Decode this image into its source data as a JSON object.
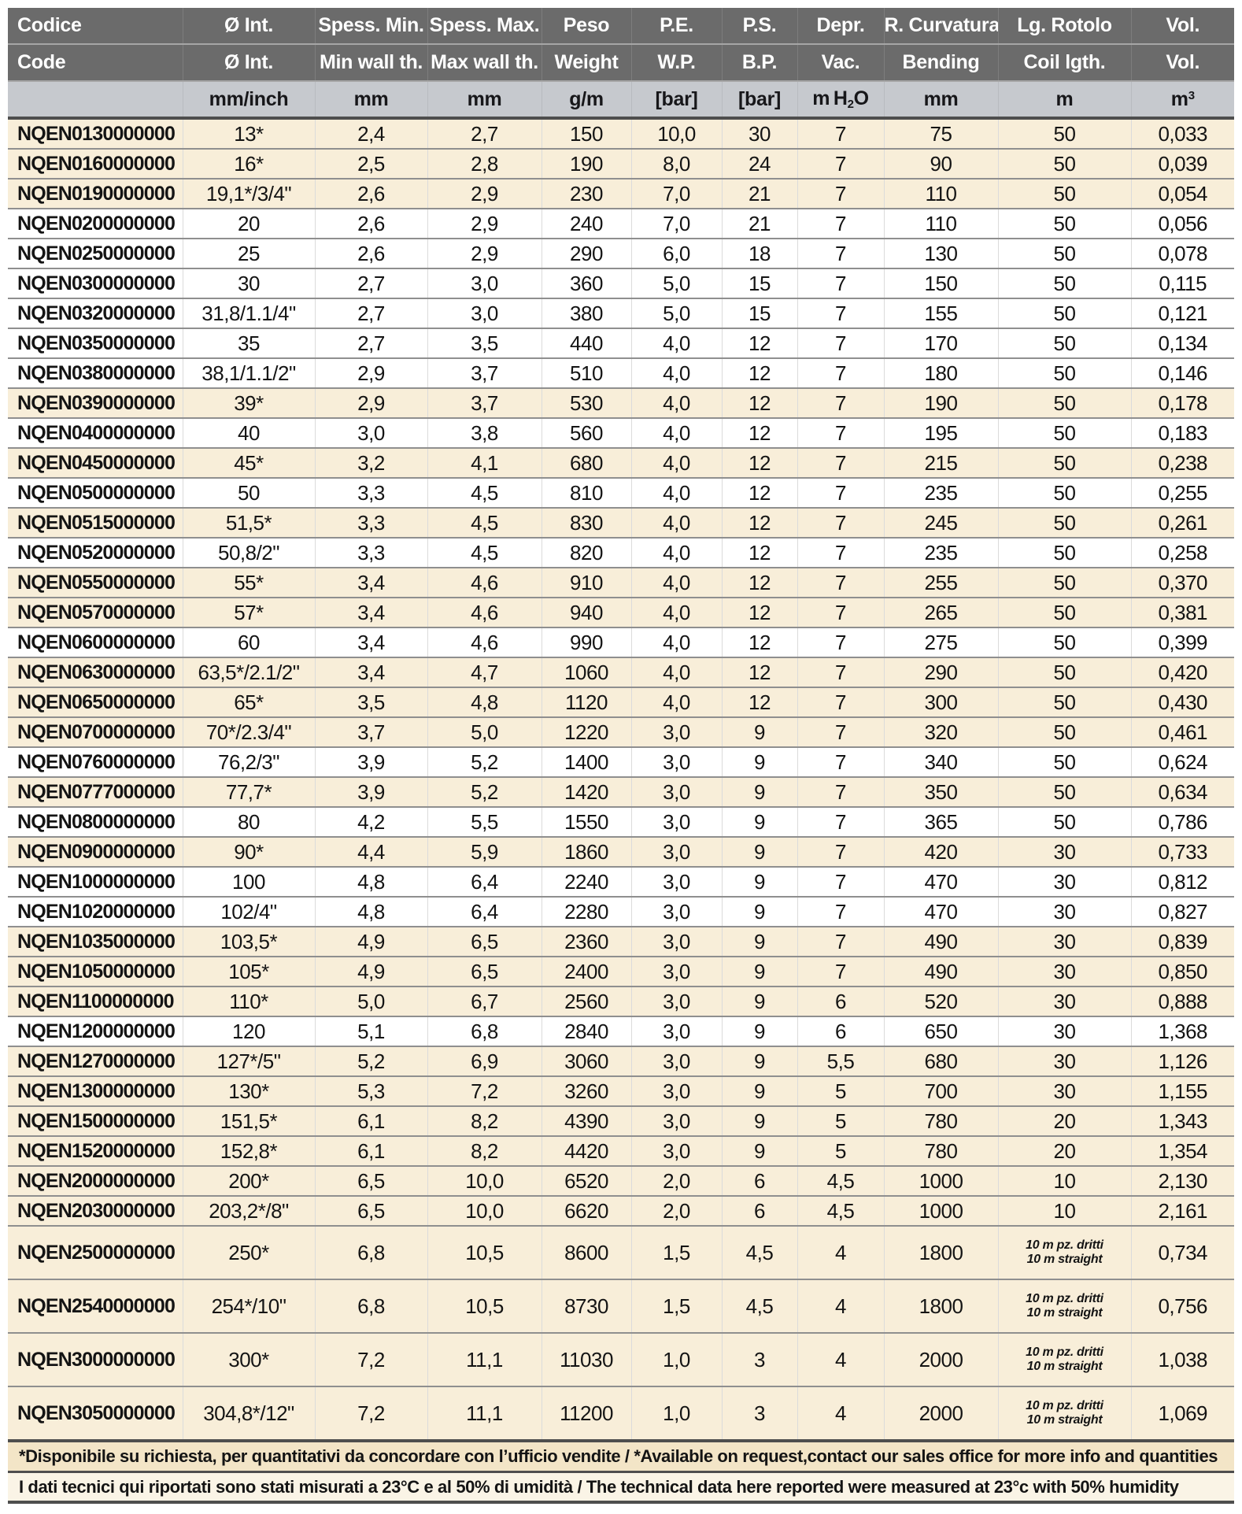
{
  "table": {
    "header": {
      "row1": [
        "Codice",
        "Ø Int.",
        "Spess. Min.",
        "Spess. Max.",
        "Peso",
        "P.E.",
        "P.S.",
        "Depr.",
        "R. Curvatura",
        "Lg. Rotolo",
        "Vol."
      ],
      "row2": [
        "Code",
        "Ø Int.",
        "Min wall th.",
        "Max wall th.",
        "Weight",
        "W.P.",
        "B.P.",
        "Vac.",
        "Bending",
        "Coil lgth.",
        "Vol."
      ],
      "units": [
        "",
        "mm/inch",
        "mm",
        "mm",
        "g/m",
        "[bar]",
        "[bar]",
        "m H2O",
        "mm",
        "m",
        "m3"
      ]
    },
    "rows": [
      [
        "NQEN0130000000",
        "13*",
        "2,4",
        "2,7",
        "150",
        "10,0",
        "30",
        "7",
        "75",
        "50",
        "0,033"
      ],
      [
        "NQEN0160000000",
        "16*",
        "2,5",
        "2,8",
        "190",
        "8,0",
        "24",
        "7",
        "90",
        "50",
        "0,039"
      ],
      [
        "NQEN0190000000",
        "19,1*/3/4\"",
        "2,6",
        "2,9",
        "230",
        "7,0",
        "21",
        "7",
        "110",
        "50",
        "0,054"
      ],
      [
        "NQEN0200000000",
        "20",
        "2,6",
        "2,9",
        "240",
        "7,0",
        "21",
        "7",
        "110",
        "50",
        "0,056"
      ],
      [
        "NQEN0250000000",
        "25",
        "2,6",
        "2,9",
        "290",
        "6,0",
        "18",
        "7",
        "130",
        "50",
        "0,078"
      ],
      [
        "NQEN0300000000",
        "30",
        "2,7",
        "3,0",
        "360",
        "5,0",
        "15",
        "7",
        "150",
        "50",
        "0,115"
      ],
      [
        "NQEN0320000000",
        "31,8/1.1/4\"",
        "2,7",
        "3,0",
        "380",
        "5,0",
        "15",
        "7",
        "155",
        "50",
        "0,121"
      ],
      [
        "NQEN0350000000",
        "35",
        "2,7",
        "3,5",
        "440",
        "4,0",
        "12",
        "7",
        "170",
        "50",
        "0,134"
      ],
      [
        "NQEN0380000000",
        "38,1/1.1/2\"",
        "2,9",
        "3,7",
        "510",
        "4,0",
        "12",
        "7",
        "180",
        "50",
        "0,146"
      ],
      [
        "NQEN0390000000",
        "39*",
        "2,9",
        "3,7",
        "530",
        "4,0",
        "12",
        "7",
        "190",
        "50",
        "0,178"
      ],
      [
        "NQEN0400000000",
        "40",
        "3,0",
        "3,8",
        "560",
        "4,0",
        "12",
        "7",
        "195",
        "50",
        "0,183"
      ],
      [
        "NQEN0450000000",
        "45*",
        "3,2",
        "4,1",
        "680",
        "4,0",
        "12",
        "7",
        "215",
        "50",
        "0,238"
      ],
      [
        "NQEN0500000000",
        "50",
        "3,3",
        "4,5",
        "810",
        "4,0",
        "12",
        "7",
        "235",
        "50",
        "0,255"
      ],
      [
        "NQEN0515000000",
        "51,5*",
        "3,3",
        "4,5",
        "830",
        "4,0",
        "12",
        "7",
        "245",
        "50",
        "0,261"
      ],
      [
        "NQEN0520000000",
        "50,8/2\"",
        "3,3",
        "4,5",
        "820",
        "4,0",
        "12",
        "7",
        "235",
        "50",
        "0,258"
      ],
      [
        "NQEN0550000000",
        "55*",
        "3,4",
        "4,6",
        "910",
        "4,0",
        "12",
        "7",
        "255",
        "50",
        "0,370"
      ],
      [
        "NQEN0570000000",
        "57*",
        "3,4",
        "4,6",
        "940",
        "4,0",
        "12",
        "7",
        "265",
        "50",
        "0,381"
      ],
      [
        "NQEN0600000000",
        "60",
        "3,4",
        "4,6",
        "990",
        "4,0",
        "12",
        "7",
        "275",
        "50",
        "0,399"
      ],
      [
        "NQEN0630000000",
        "63,5*/2.1/2\"",
        "3,4",
        "4,7",
        "1060",
        "4,0",
        "12",
        "7",
        "290",
        "50",
        "0,420"
      ],
      [
        "NQEN0650000000",
        "65*",
        "3,5",
        "4,8",
        "1120",
        "4,0",
        "12",
        "7",
        "300",
        "50",
        "0,430"
      ],
      [
        "NQEN0700000000",
        "70*/2.3/4\"",
        "3,7",
        "5,0",
        "1220",
        "3,0",
        "9",
        "7",
        "320",
        "50",
        "0,461"
      ],
      [
        "NQEN0760000000",
        "76,2/3\"",
        "3,9",
        "5,2",
        "1400",
        "3,0",
        "9",
        "7",
        "340",
        "50",
        "0,624"
      ],
      [
        "NQEN0777000000",
        "77,7*",
        "3,9",
        "5,2",
        "1420",
        "3,0",
        "9",
        "7",
        "350",
        "50",
        "0,634"
      ],
      [
        "NQEN0800000000",
        "80",
        "4,2",
        "5,5",
        "1550",
        "3,0",
        "9",
        "7",
        "365",
        "50",
        "0,786"
      ],
      [
        "NQEN0900000000",
        "90*",
        "4,4",
        "5,9",
        "1860",
        "3,0",
        "9",
        "7",
        "420",
        "30",
        "0,733"
      ],
      [
        "NQEN1000000000",
        "100",
        "4,8",
        "6,4",
        "2240",
        "3,0",
        "9",
        "7",
        "470",
        "30",
        "0,812"
      ],
      [
        "NQEN1020000000",
        "102/4\"",
        "4,8",
        "6,4",
        "2280",
        "3,0",
        "9",
        "7",
        "470",
        "30",
        "0,827"
      ],
      [
        "NQEN1035000000",
        "103,5*",
        "4,9",
        "6,5",
        "2360",
        "3,0",
        "9",
        "7",
        "490",
        "30",
        "0,839"
      ],
      [
        "NQEN1050000000",
        "105*",
        "4,9",
        "6,5",
        "2400",
        "3,0",
        "9",
        "7",
        "490",
        "30",
        "0,850"
      ],
      [
        "NQEN1100000000",
        "110*",
        "5,0",
        "6,7",
        "2560",
        "3,0",
        "9",
        "6",
        "520",
        "30",
        "0,888"
      ],
      [
        "NQEN1200000000",
        "120",
        "5,1",
        "6,8",
        "2840",
        "3,0",
        "9",
        "6",
        "650",
        "30",
        "1,368"
      ],
      [
        "NQEN1270000000",
        "127*/5\"",
        "5,2",
        "6,9",
        "3060",
        "3,0",
        "9",
        "5,5",
        "680",
        "30",
        "1,126"
      ],
      [
        "NQEN1300000000",
        "130*",
        "5,3",
        "7,2",
        "3260",
        "3,0",
        "9",
        "5",
        "700",
        "30",
        "1,155"
      ],
      [
        "NQEN1500000000",
        "151,5*",
        "6,1",
        "8,2",
        "4390",
        "3,0",
        "9",
        "5",
        "780",
        "20",
        "1,343"
      ],
      [
        "NQEN1520000000",
        "152,8*",
        "6,1",
        "8,2",
        "4420",
        "3,0",
        "9",
        "5",
        "780",
        "20",
        "1,354"
      ],
      [
        "NQEN2000000000",
        "200*",
        "6,5",
        "10,0",
        "6520",
        "2,0",
        "6",
        "4,5",
        "1000",
        "10",
        "2,130"
      ],
      [
        "NQEN2030000000",
        "203,2*/8\"",
        "6,5",
        "10,0",
        "6620",
        "2,0",
        "6",
        "4,5",
        "1000",
        "10",
        "2,161"
      ],
      [
        "NQEN2500000000",
        "250*",
        "6,8",
        "10,5",
        "8600",
        "1,5",
        "4,5",
        "4",
        "1800",
        [
          "10 m pz. dritti",
          "10 m straight"
        ],
        "0,734"
      ],
      [
        "NQEN2540000000",
        "254*/10\"",
        "6,8",
        "10,5",
        "8730",
        "1,5",
        "4,5",
        "4",
        "1800",
        [
          "10 m pz. dritti",
          "10 m straight"
        ],
        "0,756"
      ],
      [
        "NQEN3000000000",
        "300*",
        "7,2",
        "11,1",
        "11030",
        "1,0",
        "3",
        "4",
        "2000",
        [
          "10 m pz. dritti",
          "10 m straight"
        ],
        "1,038"
      ],
      [
        "NQEN3050000000",
        "304,8*/12\"",
        "7,2",
        "11,1",
        "11200",
        "1,0",
        "3",
        "4",
        "2000",
        [
          "10 m pz. dritti",
          "10 m straight"
        ],
        "1,069"
      ]
    ]
  },
  "footnotes": [
    "*Disponibile su richiesta, per quantitativi da concordare con l’ufficio vendite / *Available on request,contact our sales office for more info and quantities",
    "I dati tecnici qui riportati sono stati misurati a 23°C e al 50% di umidità / The technical data here reported were measured at 23°c with 50% humidity"
  ],
  "colors": {
    "header_bg": "#6b6b6b",
    "units_bg": "#c6c9ce",
    "highlight_row_bg": "#f8eed9",
    "plain_row_bg": "#ffffff",
    "footnote1_bg": "#f3e5c7",
    "footnote2_bg": "#faf4e6"
  }
}
